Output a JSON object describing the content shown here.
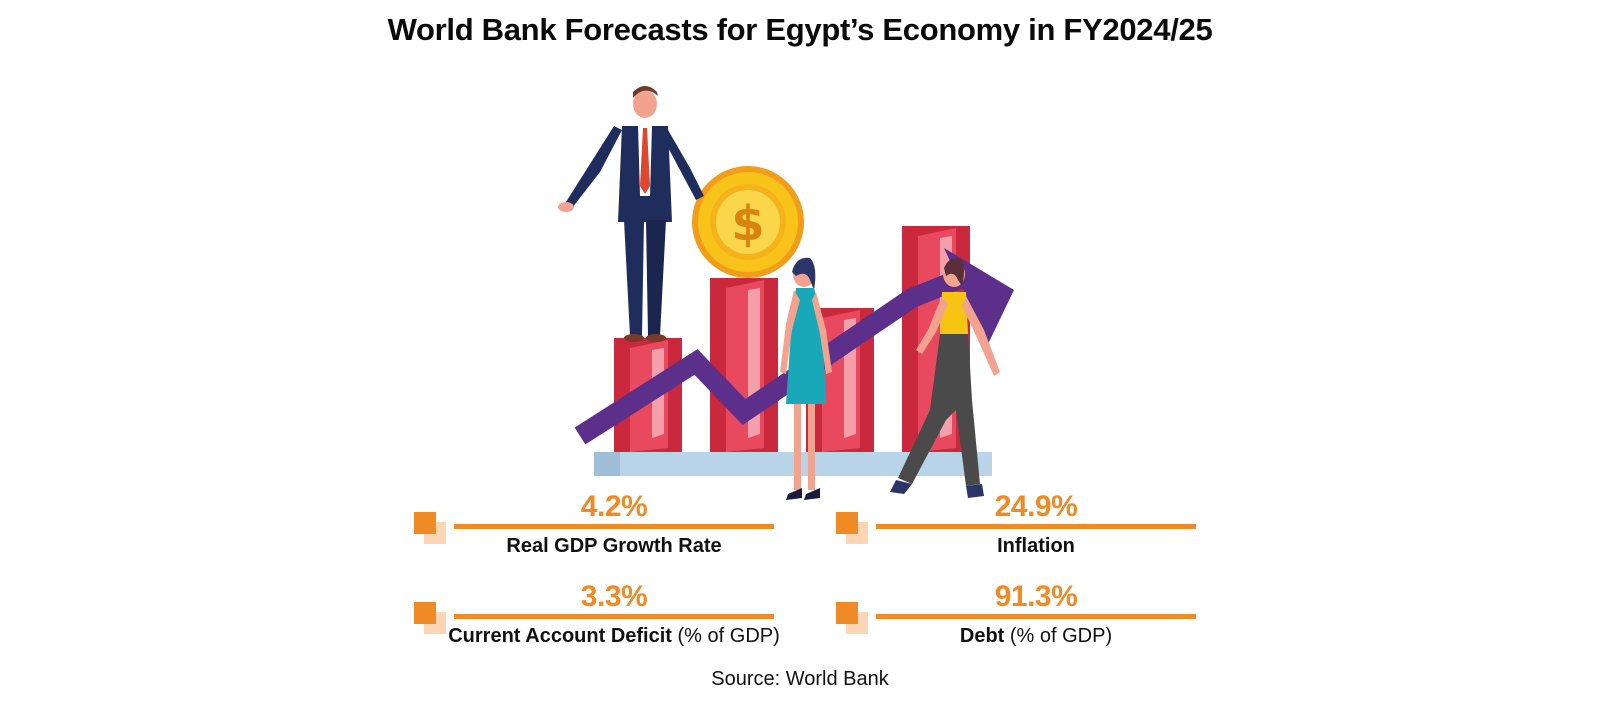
{
  "title": "World Bank Forecasts for Egypt’s Economy in FY2024/25",
  "stats": [
    {
      "value": "4.2%",
      "label_bold": "Real GDP Growth Rate",
      "label_rest": ""
    },
    {
      "value": "24.9%",
      "label_bold": "Inflation",
      "label_rest": ""
    },
    {
      "value": "3.3%",
      "label_bold": "Current Account Deficit",
      "label_rest": " (% of GDP)"
    },
    {
      "value": "91.3%",
      "label_bold": "Debt",
      "label_rest": " (% of GDP)"
    }
  ],
  "source": "Source: World Bank",
  "icons": [
    "dollar-coin-icon",
    "trend-arrow-icon",
    "businessman-icon",
    "businesswoman-icon"
  ],
  "colors": {
    "accent": "#f08a24",
    "accent_light": "#fcd6b4",
    "bar_red": "#e8495e",
    "arrow_purple": "#5b2f8a",
    "coin_gold": "#f8c41a"
  }
}
